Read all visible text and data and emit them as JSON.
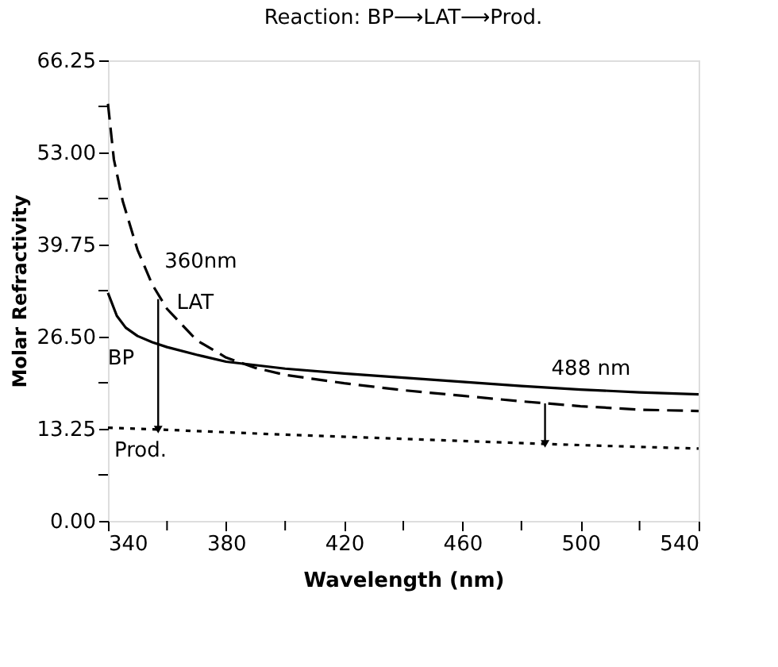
{
  "chart_data": {
    "type": "line",
    "title": "Reaction:  BP⟶LAT⟶Prod.",
    "xlabel": "Wavelength (nm)",
    "ylabel": "Molar Refractivity",
    "series": [
      {
        "name": "BP",
        "color": "#000000",
        "line_style": "solid",
        "x": [
          340,
          343,
          346,
          350,
          355,
          360,
          370,
          380,
          400,
          420,
          440,
          460,
          480,
          500,
          520,
          540
        ],
        "values": [
          32.8,
          29.5,
          27.8,
          26.6,
          25.7,
          25.0,
          23.9,
          22.9,
          21.9,
          21.2,
          20.6,
          20.0,
          19.4,
          18.9,
          18.5,
          18.2
        ]
      },
      {
        "name": "LAT",
        "color": "#000000",
        "line_style": "dashed",
        "x": [
          340,
          342,
          345,
          350,
          355,
          360,
          370,
          380,
          390,
          400,
          420,
          440,
          460,
          480,
          500,
          520,
          540
        ],
        "values": [
          60.0,
          52.0,
          46.0,
          39.0,
          34.0,
          30.5,
          26.0,
          23.5,
          22.0,
          21.0,
          19.8,
          18.8,
          18.0,
          17.2,
          16.5,
          16.0,
          15.8
        ]
      },
      {
        "name": "Prod.",
        "color": "#000000",
        "line_style": "dotted",
        "x": [
          340,
          360,
          400,
          460,
          500,
          540
        ],
        "values": [
          13.4,
          13.1,
          12.4,
          11.5,
          10.9,
          10.4
        ]
      }
    ],
    "xlim": [
      340,
      540
    ],
    "xticks": [
      340,
      {
        "value": 360,
        "label": null
      },
      380,
      {
        "value": 400,
        "label": null
      },
      420,
      {
        "value": 440,
        "label": null
      },
      460,
      {
        "value": 480,
        "label": null
      },
      500,
      {
        "value": 520,
        "label": null
      },
      540
    ],
    "ylim": [
      0,
      66.25
    ],
    "yticks": [
      {
        "value": 0,
        "label": "0.00"
      },
      {
        "value": 6.625,
        "label": null
      },
      13.25,
      {
        "value": 19.875,
        "label": null
      },
      {
        "value": 26.5,
        "label": "26.50"
      },
      {
        "value": 33.125,
        "label": null
      },
      39.75,
      {
        "value": 46.375,
        "label": null
      },
      {
        "value": 53,
        "label": "53.00"
      },
      {
        "value": 59.625,
        "label": null
      },
      66.25
    ],
    "annotations": [
      {
        "text": "360nm",
        "x": 357,
        "y": 31.9
      },
      {
        "text": "488 nm",
        "x": 488,
        "y": 16.9
      }
    ],
    "grid": false,
    "marker": "none"
  }
}
